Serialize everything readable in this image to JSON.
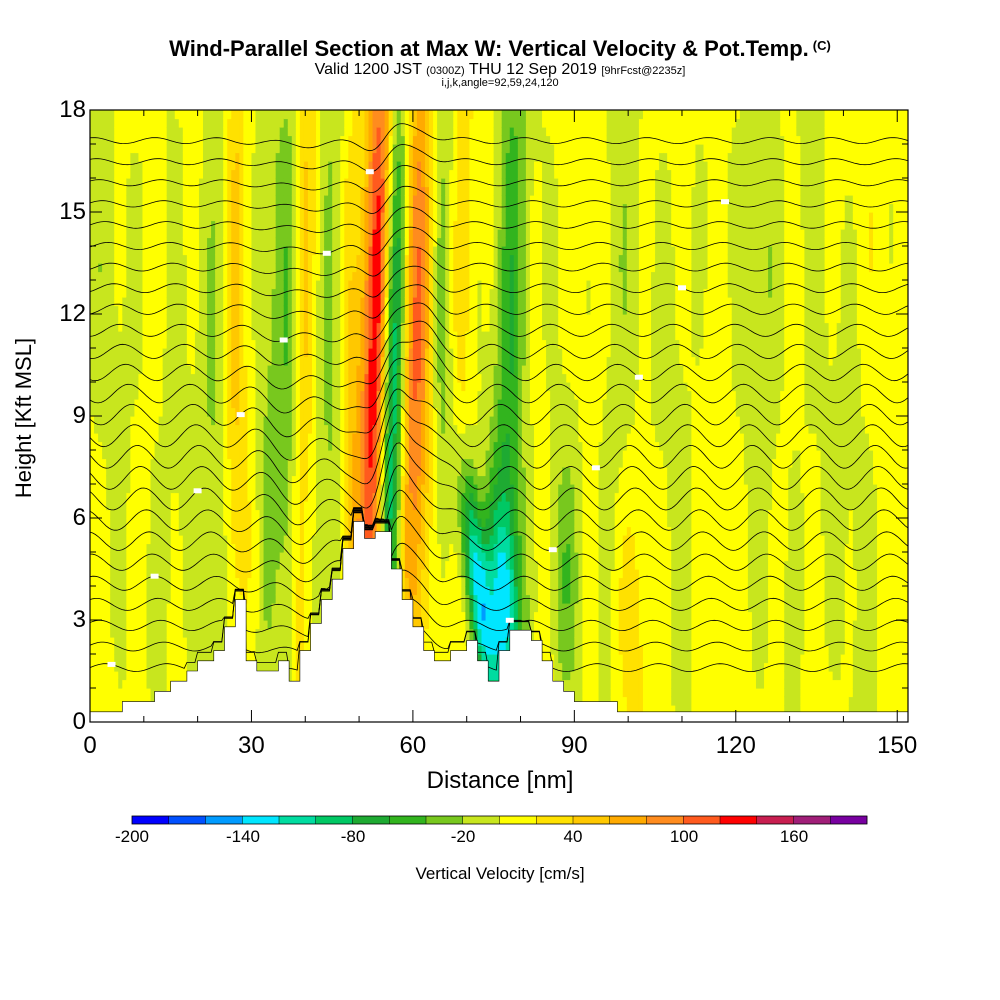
{
  "title": {
    "main": "Wind-Parallel Section at Max W: Vertical Velocity & Pot.Temp.",
    "mark": "(C)",
    "sub_valid": "Valid 1200 JST",
    "sub_z": "(0300Z)",
    "sub_date": "THU 12 Sep 2019",
    "sub_fcst": "[9hrFcst@2235z]",
    "sub2": "i,j,k,angle=92,59,24,120"
  },
  "chart_data": {
    "type": "heatmap",
    "xlabel": "Distance [nm]",
    "ylabel": "Height [Kft MSL]",
    "xlim": [
      0,
      152
    ],
    "ylim": [
      0,
      18
    ],
    "xticks": [
      "0",
      "30",
      "60",
      "90",
      "120",
      "150"
    ],
    "yticks": [
      "0",
      "3",
      "6",
      "9",
      "12",
      "15",
      "18"
    ],
    "colorbar": {
      "title": "Vertical Velocity [cm/s]",
      "min": -200,
      "max": 200,
      "step": 20,
      "tick_labels": [
        "-200",
        "-140",
        "-80",
        "-20",
        "40",
        "100",
        "160"
      ],
      "colors": [
        "#0000ff",
        "#0050ff",
        "#009bff",
        "#00e6ff",
        "#00dca0",
        "#00c864",
        "#1eaa32",
        "#32b41e",
        "#78c81e",
        "#c8e61e",
        "#ffff00",
        "#ffe100",
        "#ffc800",
        "#ffaa00",
        "#ff8c1e",
        "#ff5a1e",
        "#ff0000",
        "#c81e50",
        "#a01e78",
        "#7800a0"
      ]
    },
    "terrain_kft": [
      [
        0,
        0.3
      ],
      [
        6,
        0.3
      ],
      [
        6,
        0.6
      ],
      [
        12,
        0.6
      ],
      [
        12,
        0.9
      ],
      [
        15,
        0.9
      ],
      [
        15,
        1.2
      ],
      [
        18,
        1.2
      ],
      [
        18,
        1.5
      ],
      [
        20,
        1.5
      ],
      [
        20,
        1.8
      ],
      [
        23,
        1.8
      ],
      [
        23,
        2.1
      ],
      [
        25,
        2.1
      ],
      [
        25,
        2.8
      ],
      [
        27,
        2.8
      ],
      [
        27,
        3.6
      ],
      [
        29,
        3.6
      ],
      [
        29,
        1.8
      ],
      [
        31,
        1.8
      ],
      [
        31,
        1.5
      ],
      [
        35,
        1.5
      ],
      [
        35,
        1.8
      ],
      [
        37,
        1.8
      ],
      [
        37,
        1.2
      ],
      [
        39,
        1.2
      ],
      [
        39,
        2.1
      ],
      [
        41,
        2.1
      ],
      [
        41,
        2.9
      ],
      [
        43,
        2.9
      ],
      [
        43,
        3.6
      ],
      [
        45,
        3.6
      ],
      [
        45,
        4.2
      ],
      [
        47,
        4.2
      ],
      [
        47,
        5.1
      ],
      [
        49,
        5.1
      ],
      [
        49,
        5.9
      ],
      [
        51,
        5.9
      ],
      [
        51,
        5.4
      ],
      [
        53,
        5.4
      ],
      [
        53,
        5.6
      ],
      [
        56,
        5.6
      ],
      [
        56,
        4.5
      ],
      [
        58,
        4.5
      ],
      [
        58,
        3.6
      ],
      [
        60,
        3.6
      ],
      [
        60,
        2.8
      ],
      [
        62,
        2.8
      ],
      [
        62,
        2.1
      ],
      [
        64,
        2.1
      ],
      [
        64,
        1.8
      ],
      [
        67,
        1.8
      ],
      [
        67,
        2.1
      ],
      [
        70,
        2.1
      ],
      [
        70,
        2.4
      ],
      [
        72,
        2.4
      ],
      [
        72,
        1.8
      ],
      [
        74,
        1.8
      ],
      [
        74,
        1.2
      ],
      [
        76,
        1.2
      ],
      [
        76,
        2.1
      ],
      [
        78,
        2.1
      ],
      [
        78,
        2.7
      ],
      [
        82,
        2.7
      ],
      [
        82,
        2.4
      ],
      [
        84,
        2.4
      ],
      [
        84,
        1.8
      ],
      [
        86,
        1.8
      ],
      [
        86,
        1.2
      ],
      [
        88,
        1.2
      ],
      [
        88,
        0.9
      ],
      [
        90,
        0.9
      ],
      [
        90,
        0.6
      ],
      [
        98,
        0.6
      ],
      [
        98,
        0.3
      ],
      [
        152,
        0.3
      ]
    ],
    "theta_contours": {
      "count": 26,
      "base_kft": 1.6,
      "spacing_kft": 0.62
    },
    "velocity_features": [
      {
        "x": 56,
        "z": 9.5,
        "sx": 1.6,
        "sz": 7.5,
        "w": -160,
        "tilt": 0.12
      },
      {
        "x": 53.5,
        "z": 11,
        "sx": 2.2,
        "sz": 8,
        "w": 150,
        "tilt": 0.12
      },
      {
        "x": 60.5,
        "z": 10,
        "sx": 2,
        "sz": 8,
        "w": 90,
        "tilt": 0.12
      },
      {
        "x": 66,
        "z": 11,
        "sx": 1.8,
        "sz": 7,
        "w": -60,
        "tilt": 0.05
      },
      {
        "x": 68,
        "z": 12,
        "sx": 2,
        "sz": 8,
        "w": 45,
        "tilt": 0.05
      },
      {
        "x": 72,
        "z": 4,
        "sx": 1.6,
        "sz": 2.5,
        "w": -140,
        "tilt": -0.6
      },
      {
        "x": 77,
        "z": 3.5,
        "sx": 2.2,
        "sz": 2.2,
        "w": -90,
        "tilt": -0.3
      },
      {
        "x": 78,
        "z": 10,
        "sx": 2.2,
        "sz": 9,
        "w": -70,
        "tilt": 0.05
      },
      {
        "x": 39,
        "z": 9,
        "sx": 1.6,
        "sz": 10,
        "w": 45,
        "tilt": 0.05
      },
      {
        "x": 37,
        "z": 9,
        "sx": 1.5,
        "sz": 10,
        "w": -50,
        "tilt": 0.05
      },
      {
        "x": 45,
        "z": 10,
        "sx": 2,
        "sz": 10,
        "w": -40,
        "tilt": 0.05
      },
      {
        "x": 48,
        "z": 9,
        "sx": 1.6,
        "sz": 9,
        "w": 35,
        "tilt": 0.05
      },
      {
        "x": 23,
        "z": 10,
        "sx": 2,
        "sz": 10,
        "w": -25,
        "tilt": 0.05
      },
      {
        "x": 27,
        "z": 12,
        "sx": 1.3,
        "sz": 8,
        "w": 35,
        "tilt": 0.05
      },
      {
        "x": 33,
        "z": 9,
        "sx": 1.6,
        "sz": 10,
        "w": -30,
        "tilt": 0.05
      },
      {
        "x": 15,
        "z": 5,
        "sx": 2.5,
        "sz": 5,
        "w": -20,
        "tilt": 0
      },
      {
        "x": 98,
        "z": 9,
        "sx": 2.5,
        "sz": 9,
        "w": -25,
        "tilt": 0
      },
      {
        "x": 88,
        "z": 4,
        "sx": 2,
        "sz": 3,
        "w": -40,
        "tilt": 0
      },
      {
        "x": 125,
        "z": 14,
        "sx": 2.5,
        "sz": 5,
        "w": -30,
        "tilt": 0
      },
      {
        "x": 110,
        "z": 12,
        "sx": 3,
        "sz": 7,
        "w": -15,
        "tilt": 0
      },
      {
        "x": 5,
        "z": 14,
        "sx": 5,
        "sz": 5,
        "w": -15,
        "tilt": 0
      },
      {
        "x": 100,
        "z": 3,
        "sx": 3,
        "sz": 3,
        "w": 25,
        "tilt": 0
      },
      {
        "x": 133,
        "z": 8,
        "sx": 3,
        "sz": 10,
        "w": -12,
        "tilt": 0
      },
      {
        "x": 142,
        "z": 6,
        "sx": 4,
        "sz": 6,
        "w": -10,
        "tilt": 0
      }
    ]
  }
}
